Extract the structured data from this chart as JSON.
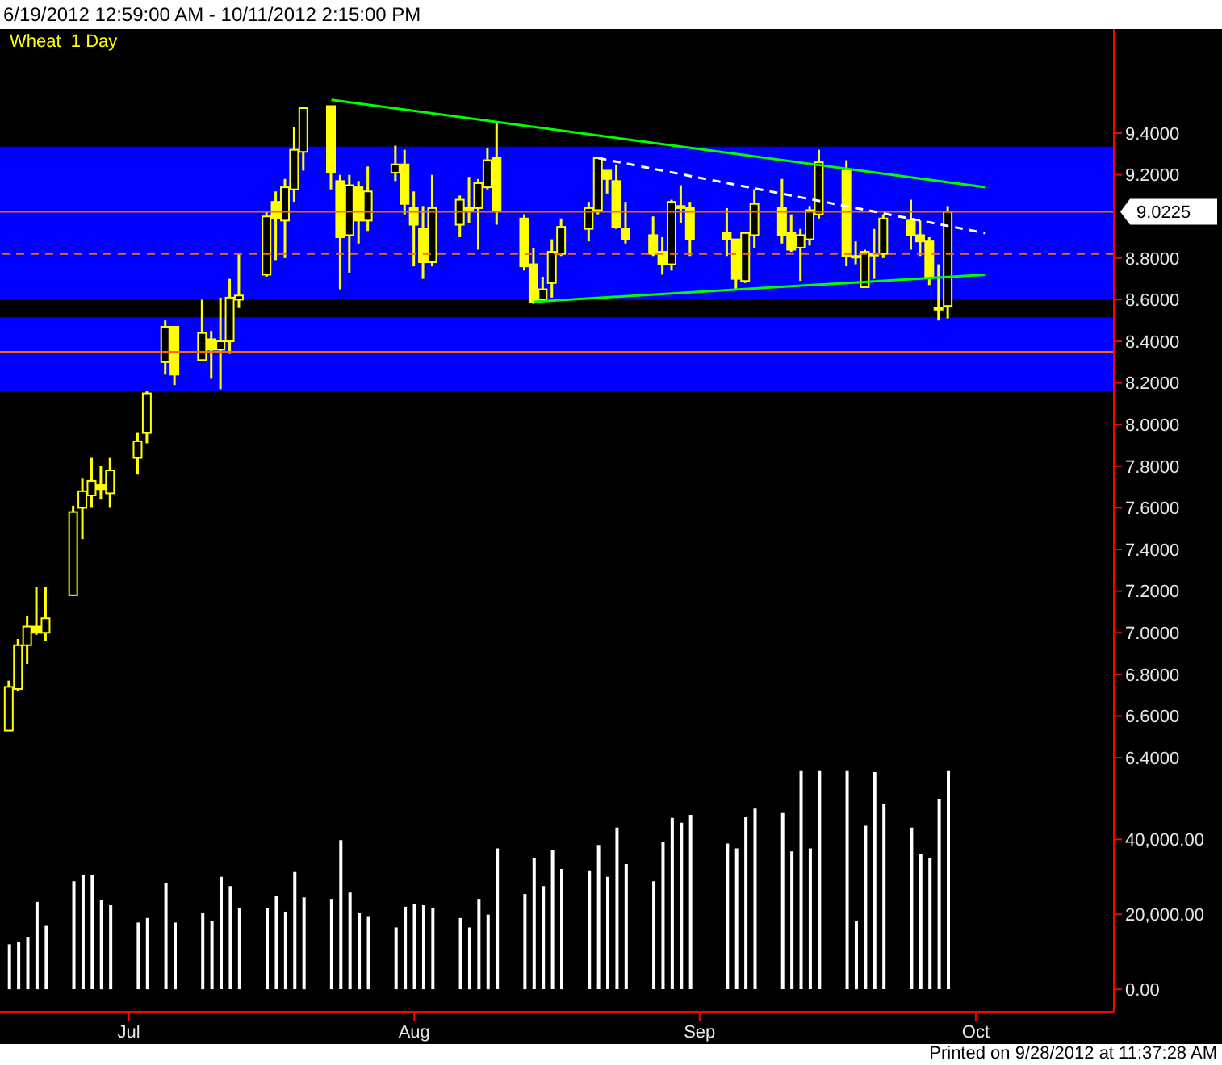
{
  "chart_data": [
    {
      "type": "candlestick",
      "title": "6/19/2012 12:59:00 AM - 10/11/2012 2:15:00 PM",
      "legend": "top left",
      "tick_labels": "y",
      "x": [
        "2012-06-18",
        "2012-06-19",
        "2012-06-20",
        "2012-06-21",
        "2012-06-22",
        "2012-06-25",
        "2012-06-26",
        "2012-06-27",
        "2012-06-28",
        "2012-06-29",
        "2012-07-02",
        "2012-07-03",
        "2012-07-05",
        "2012-07-06",
        "2012-07-09",
        "2012-07-10",
        "2012-07-11",
        "2012-07-12",
        "2012-07-13",
        "2012-07-16",
        "2012-07-17",
        "2012-07-18",
        "2012-07-19",
        "2012-07-20",
        "2012-07-23",
        "2012-07-24",
        "2012-07-25",
        "2012-07-26",
        "2012-07-27",
        "2012-07-30",
        "2012-07-31",
        "2012-08-01",
        "2012-08-02",
        "2012-08-03",
        "2012-08-06",
        "2012-08-07",
        "2012-08-08",
        "2012-08-09",
        "2012-08-10",
        "2012-08-13",
        "2012-08-14",
        "2012-08-15",
        "2012-08-16",
        "2012-08-17",
        "2012-08-20",
        "2012-08-21",
        "2012-08-22",
        "2012-08-23",
        "2012-08-24",
        "2012-08-27",
        "2012-08-28",
        "2012-08-29",
        "2012-08-30",
        "2012-08-31",
        "2012-09-04",
        "2012-09-05",
        "2012-09-06",
        "2012-09-07",
        "2012-09-10",
        "2012-09-11",
        "2012-09-12",
        "2012-09-13",
        "2012-09-14",
        "2012-09-17",
        "2012-09-18",
        "2012-09-19",
        "2012-09-20",
        "2012-09-21",
        "2012-09-24",
        "2012-09-25",
        "2012-09-26",
        "2012-09-27",
        "2012-09-28"
      ],
      "series": [
        {
          "name": "Wheat  1 Day",
          "type": "candlestick",
          "color": "#ffff00",
          "ohlc": [
            [
              6.53,
              6.77,
              6.53,
              6.74
            ],
            [
              6.73,
              6.97,
              6.72,
              6.94
            ],
            [
              6.94,
              7.08,
              6.85,
              7.03
            ],
            [
              7.03,
              7.22,
              6.99,
              7.0
            ],
            [
              7.0,
              7.22,
              6.96,
              7.07
            ],
            [
              7.18,
              7.61,
              7.18,
              7.58
            ],
            [
              7.6,
              7.74,
              7.45,
              7.68
            ],
            [
              7.66,
              7.84,
              7.6,
              7.73
            ],
            [
              7.71,
              7.8,
              7.64,
              7.69
            ],
            [
              7.67,
              7.84,
              7.6,
              7.78
            ],
            [
              7.84,
              7.96,
              7.76,
              7.92
            ],
            [
              7.96,
              8.16,
              7.91,
              8.15
            ],
            [
              8.3,
              8.5,
              8.24,
              8.47
            ],
            [
              8.47,
              8.47,
              8.19,
              8.24
            ],
            [
              8.31,
              8.6,
              8.31,
              8.44
            ],
            [
              8.41,
              8.45,
              8.22,
              8.36
            ],
            [
              8.36,
              8.61,
              8.17,
              8.4
            ],
            [
              8.4,
              8.7,
              8.34,
              8.61
            ],
            [
              8.6,
              8.82,
              8.56,
              8.62
            ],
            [
              8.72,
              9.02,
              8.71,
              9.0
            ],
            [
              9.07,
              9.12,
              8.79,
              8.99
            ],
            [
              8.98,
              9.18,
              8.8,
              9.14
            ],
            [
              9.13,
              9.43,
              9.07,
              9.32
            ],
            [
              9.31,
              9.52,
              9.22,
              9.52
            ],
            [
              9.53,
              9.53,
              9.13,
              9.21
            ],
            [
              9.17,
              9.2,
              8.65,
              8.9
            ],
            [
              8.91,
              9.2,
              8.73,
              9.15
            ],
            [
              9.14,
              9.17,
              8.87,
              8.98
            ],
            [
              8.98,
              9.24,
              8.93,
              9.12
            ],
            [
              9.21,
              9.34,
              9.17,
              9.25
            ],
            [
              9.25,
              9.32,
              9.01,
              9.06
            ],
            [
              9.04,
              9.12,
              8.76,
              8.96
            ],
            [
              8.94,
              9.05,
              8.7,
              8.78
            ],
            [
              8.78,
              9.2,
              8.76,
              9.04
            ],
            [
              8.96,
              9.1,
              8.9,
              9.08
            ],
            [
              9.04,
              9.19,
              8.97,
              9.04
            ],
            [
              9.04,
              9.18,
              8.84,
              9.16
            ],
            [
              9.14,
              9.33,
              9.13,
              9.27
            ],
            [
              9.28,
              9.45,
              8.96,
              9.03
            ],
            [
              8.99,
              9.01,
              8.74,
              8.76
            ],
            [
              8.77,
              8.85,
              8.58,
              8.59
            ],
            [
              8.6,
              8.71,
              8.59,
              8.65
            ],
            [
              8.68,
              8.89,
              8.61,
              8.83
            ],
            [
              8.82,
              8.99,
              8.81,
              8.95
            ],
            [
              8.94,
              9.07,
              8.88,
              9.04
            ],
            [
              9.03,
              9.28,
              9.01,
              9.28
            ],
            [
              9.22,
              9.22,
              9.11,
              9.18
            ],
            [
              9.17,
              9.25,
              8.94,
              8.95
            ],
            [
              8.94,
              9.07,
              8.87,
              8.89
            ],
            [
              8.91,
              9.0,
              8.81,
              8.82
            ],
            [
              8.83,
              8.9,
              8.72,
              8.77
            ],
            [
              8.77,
              9.08,
              8.74,
              9.07
            ],
            [
              9.05,
              9.15,
              8.97,
              9.04
            ],
            [
              9.04,
              9.07,
              8.81,
              8.89
            ],
            [
              8.92,
              9.04,
              8.81,
              8.89
            ],
            [
              8.89,
              8.89,
              8.65,
              8.7
            ],
            [
              8.69,
              8.92,
              8.68,
              8.92
            ],
            [
              8.91,
              9.13,
              8.85,
              9.06
            ],
            [
              9.04,
              9.18,
              8.87,
              8.91
            ],
            [
              8.92,
              9.01,
              8.83,
              8.84
            ],
            [
              8.85,
              8.94,
              8.69,
              8.91
            ],
            [
              8.89,
              9.05,
              8.86,
              9.03
            ],
            [
              9.01,
              9.32,
              8.99,
              9.26
            ],
            [
              9.22,
              9.27,
              8.76,
              8.81
            ],
            [
              8.81,
              8.88,
              8.77,
              8.81
            ],
            [
              8.66,
              8.84,
              8.66,
              8.83
            ],
            [
              8.82,
              8.94,
              8.7,
              8.82
            ],
            [
              8.82,
              9.01,
              8.8,
              8.99
            ],
            [
              8.98,
              9.08,
              8.84,
              8.91
            ],
            [
              8.91,
              8.98,
              8.81,
              8.88
            ],
            [
              8.88,
              8.9,
              8.67,
              8.71
            ],
            [
              8.56,
              8.77,
              8.5,
              8.56
            ],
            [
              8.57,
              9.05,
              8.51,
              9.0225
            ]
          ]
        },
        {
          "type": "line",
          "color": "#00ff00",
          "x": [
            "2012-07-23",
            "2012-10-02"
          ],
          "values": [
            9.56,
            9.14
          ]
        },
        {
          "type": "line",
          "color": "#00ff00",
          "x": [
            "2012-08-14",
            "2012-10-02"
          ],
          "values": [
            8.59,
            8.72
          ]
        },
        {
          "type": "line",
          "color": "#ffffff",
          "line_style": "dashed",
          "x": [
            "2012-08-21",
            "2012-10-02"
          ],
          "values": [
            9.28,
            8.92
          ]
        }
      ],
      "xlim": [
        "2012-06-17",
        "2012-10-16"
      ],
      "ylim": [
        6.35,
        9.9
      ],
      "yticks": [
        {
          "value": 6.4,
          "label": "6.4000"
        },
        {
          "value": 6.6,
          "label": "6.6000"
        },
        {
          "value": 6.8,
          "label": "6.8000"
        },
        {
          "value": 7.0,
          "label": "7.0000"
        },
        {
          "value": 7.2,
          "label": "7.2000"
        },
        {
          "value": 7.4,
          "label": "7.4000"
        },
        {
          "value": 7.6,
          "label": "7.6000"
        },
        {
          "value": 7.8,
          "label": "7.8000"
        },
        {
          "value": 8.0,
          "label": "8.0000"
        },
        {
          "value": 8.2,
          "label": "8.2000"
        },
        {
          "value": 8.4,
          "label": "8.4000"
        },
        {
          "value": 8.6,
          "label": "8.6000"
        },
        {
          "value": 8.8,
          "label": "8.8000"
        },
        {
          "value": 9.2,
          "label": "9.2000"
        },
        {
          "value": 9.4,
          "label": "9.4000"
        }
      ],
      "bands": [
        {
          "axis": "y",
          "from": 8.6,
          "to": 9.335,
          "color": "#0000ff"
        },
        {
          "axis": "y",
          "from": 8.16,
          "to": 8.515,
          "color": "#0000ff"
        }
      ],
      "ref_lines": [
        {
          "axis": "y",
          "value": 9.0225,
          "label": "9.0225",
          "color": "#ff6a00"
        },
        {
          "axis": "y",
          "value": 8.35,
          "color": "#ff6a00"
        },
        {
          "axis": "y",
          "value": 8.82,
          "color": "#ff6a00",
          "line_style": "dashed"
        }
      ]
    },
    {
      "type": "bar",
      "color": "#ffffff",
      "x": [
        "2012-06-18",
        "2012-06-19",
        "2012-06-20",
        "2012-06-21",
        "2012-06-22",
        "2012-06-25",
        "2012-06-26",
        "2012-06-27",
        "2012-06-28",
        "2012-06-29",
        "2012-07-02",
        "2012-07-03",
        "2012-07-05",
        "2012-07-06",
        "2012-07-09",
        "2012-07-10",
        "2012-07-11",
        "2012-07-12",
        "2012-07-13",
        "2012-07-16",
        "2012-07-17",
        "2012-07-18",
        "2012-07-19",
        "2012-07-20",
        "2012-07-23",
        "2012-07-24",
        "2012-07-25",
        "2012-07-26",
        "2012-07-27",
        "2012-07-30",
        "2012-07-31",
        "2012-08-01",
        "2012-08-02",
        "2012-08-03",
        "2012-08-06",
        "2012-08-07",
        "2012-08-08",
        "2012-08-09",
        "2012-08-10",
        "2012-08-13",
        "2012-08-14",
        "2012-08-15",
        "2012-08-16",
        "2012-08-17",
        "2012-08-20",
        "2012-08-21",
        "2012-08-22",
        "2012-08-23",
        "2012-08-24",
        "2012-08-27",
        "2012-08-28",
        "2012-08-29",
        "2012-08-30",
        "2012-08-31",
        "2012-09-04",
        "2012-09-05",
        "2012-09-06",
        "2012-09-07",
        "2012-09-10",
        "2012-09-11",
        "2012-09-12",
        "2012-09-13",
        "2012-09-14",
        "2012-09-17",
        "2012-09-18",
        "2012-09-19",
        "2012-09-20",
        "2012-09-21",
        "2012-09-24",
        "2012-09-25",
        "2012-09-26",
        "2012-09-27",
        "2012-09-28"
      ],
      "values": [
        12000,
        12700,
        14000,
        23300,
        16900,
        28800,
        30500,
        30500,
        23700,
        22400,
        17800,
        19000,
        28300,
        17800,
        20300,
        18200,
        30000,
        27500,
        21600,
        21600,
        25000,
        20700,
        31300,
        24500,
        24100,
        39800,
        25800,
        20300,
        19500,
        16500,
        22000,
        22800,
        22400,
        21600,
        19000,
        16500,
        24100,
        19900,
        37600,
        25400,
        35100,
        27500,
        37200,
        32100,
        31700,
        38500,
        30000,
        43100,
        33400,
        28800,
        39300,
        45700,
        44400,
        46500,
        38900,
        37600,
        46100,
        48200,
        47000,
        36800,
        58400,
        37600,
        58400,
        58400,
        18200,
        43600,
        57900,
        49500,
        43100,
        36000,
        35100,
        50800,
        58400
      ],
      "xlim": [
        "2012-06-17",
        "2012-10-16"
      ],
      "xticks": [
        {
          "value": "2012-07-01",
          "label": "Jul"
        },
        {
          "value": "2012-08-01",
          "label": "Aug"
        },
        {
          "value": "2012-09-01",
          "label": "Sep"
        },
        {
          "value": "2012-10-01",
          "label": "Oct"
        }
      ],
      "ylim": [
        -6000,
        59000
      ],
      "yticks": [
        {
          "value": 0,
          "label": "0.00"
        },
        {
          "value": 20000,
          "label": "20,000.00"
        },
        {
          "value": 40000,
          "label": "40,000.00"
        }
      ],
      "annotations": [
        "Printed on 9/28/2012 at 11:37:28 AM"
      ]
    }
  ]
}
